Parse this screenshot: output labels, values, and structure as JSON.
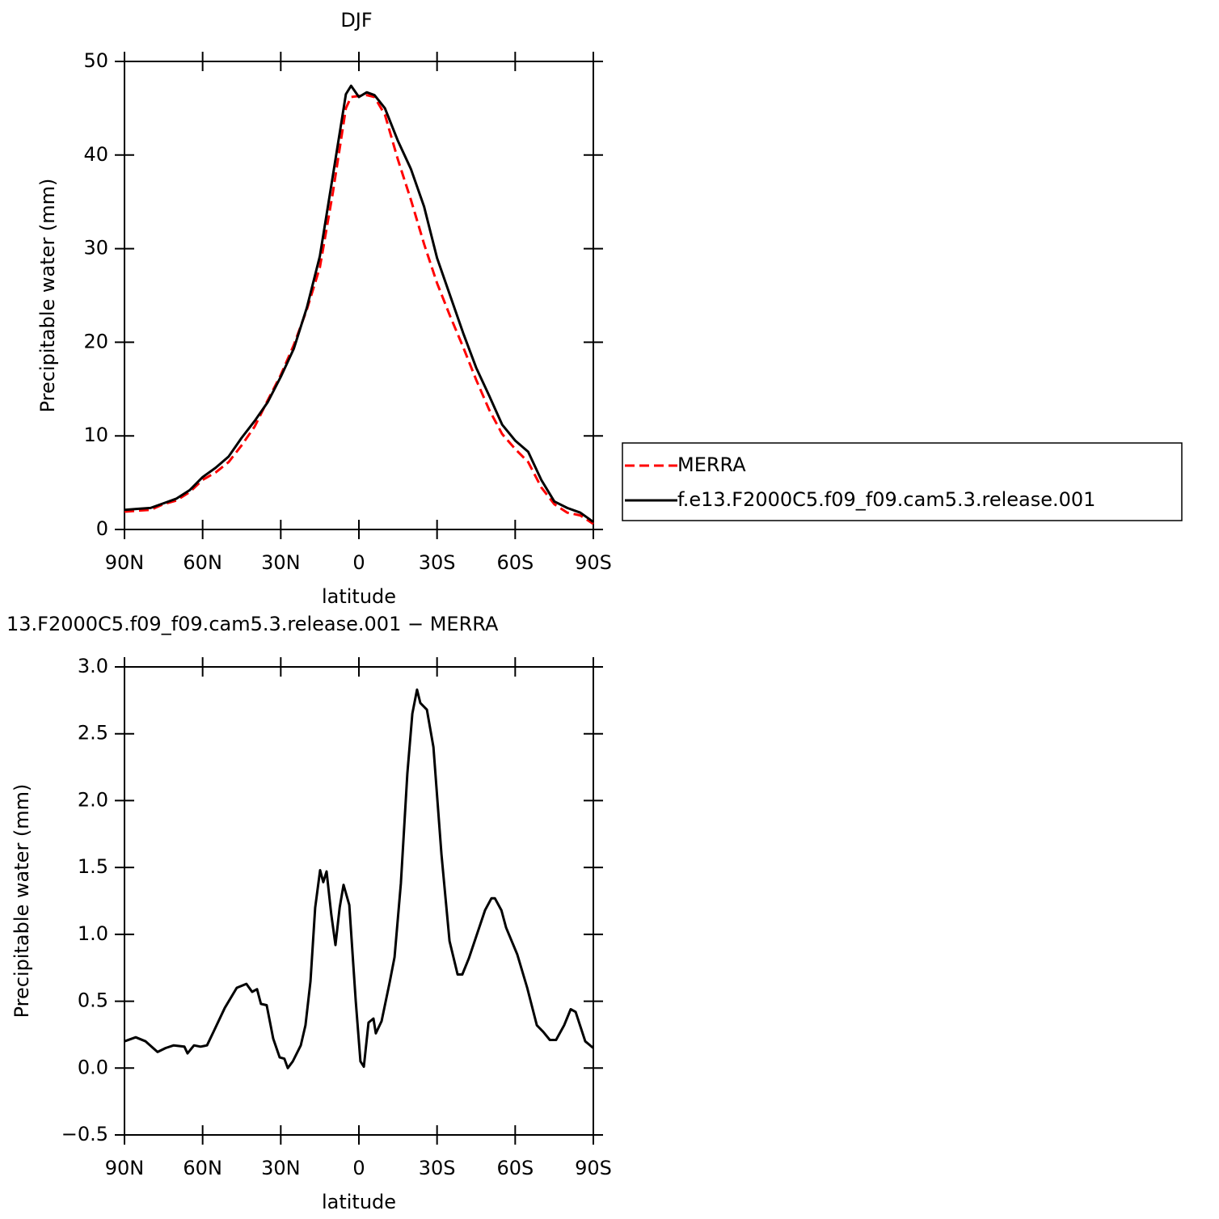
{
  "chart_data": [
    {
      "type": "line",
      "title": "DJF",
      "xlabel": "latitude",
      "ylabel": "Precipitable water (mm)",
      "x": [
        90,
        85,
        80,
        75,
        70,
        65,
        60,
        55,
        50,
        45,
        40,
        35,
        30,
        25,
        20,
        15,
        10,
        5,
        3,
        0,
        -3,
        -6,
        -10,
        -15,
        -20,
        -25,
        -30,
        -35,
        -40,
        -45,
        -50,
        -55,
        -60,
        -65,
        -70,
        -75,
        -80,
        -85,
        -90
      ],
      "series": [
        {
          "name": "MERRA",
          "color": "#ff0000",
          "line_style": "dashed",
          "values": [
            1.9,
            2.0,
            2.1,
            2.7,
            3.1,
            4.0,
            5.3,
            6.1,
            7.2,
            9.0,
            11.0,
            13.8,
            16.5,
            19.7,
            23.5,
            28.0,
            36.0,
            45.0,
            46.2,
            46.3,
            46.4,
            46.2,
            44.3,
            39.5,
            35.2,
            30.5,
            26.3,
            22.8,
            19.5,
            16.0,
            12.8,
            10.2,
            8.6,
            7.2,
            4.5,
            2.7,
            1.8,
            1.5,
            0.6
          ]
        },
        {
          "name": "f.e13.F2000C5.f09_f09.cam5.3.release.001",
          "color": "#000000",
          "line_style": "solid",
          "values": [
            2.1,
            2.2,
            2.3,
            2.8,
            3.3,
            4.2,
            5.6,
            6.6,
            7.8,
            9.8,
            11.6,
            13.6,
            16.3,
            19.3,
            23.7,
            29.2,
            37.8,
            46.5,
            47.4,
            46.2,
            46.7,
            46.4,
            45.0,
            41.5,
            38.5,
            34.5,
            29.0,
            25.0,
            21.0,
            17.3,
            14.3,
            11.2,
            9.5,
            8.3,
            5.3,
            3.0,
            2.3,
            1.8,
            0.8
          ]
        }
      ],
      "xlim": [
        90,
        -90
      ],
      "xticks": [
        {
          "value": 90,
          "label": "90N"
        },
        {
          "value": 60,
          "label": "60N"
        },
        {
          "value": 30,
          "label": "30N"
        },
        0,
        {
          "value": -30,
          "label": "30S"
        },
        {
          "value": -60,
          "label": "60S"
        },
        {
          "value": -90,
          "label": "90S"
        }
      ],
      "ylim": [
        0,
        50
      ],
      "yticks": [
        0,
        10,
        20,
        30,
        40,
        50
      ],
      "legend": "right"
    },
    {
      "type": "line",
      "title": "13.F2000C5.f09_f09.cam5.3.release.001 − MERRA",
      "xlabel": "latitude",
      "ylabel": "Precipitable water (mm)",
      "x": [
        90,
        85.7,
        81.9,
        77.3,
        74.2,
        71.1,
        67.0,
        65.8,
        63.3,
        60.8,
        58.3,
        55.6,
        51.5,
        46.9,
        43.2,
        41.0,
        39.1,
        37.6,
        35.4,
        32.9,
        30.4,
        28.6,
        27.3,
        25.4,
        22.3,
        20.5,
        18.6,
        16.8,
        14.9,
        13.7,
        12.4,
        10.6,
        9.0,
        7.4,
        5.9,
        3.7,
        1.2,
        -0.6,
        -1.9,
        -3.7,
        -5.6,
        -6.5,
        -8.7,
        -11.8,
        -13.7,
        -16.1,
        -18.6,
        -20.5,
        -22.3,
        -23.6,
        -26.1,
        -28.6,
        -31.7,
        -34.8,
        -37.9,
        -39.7,
        -42.2,
        -45.3,
        -48.4,
        -50.9,
        -52.2,
        -54.7,
        -56.5,
        -60.8,
        -64.6,
        -68.3,
        -70.8,
        -73.3,
        -75.7,
        -78.8,
        -81.3,
        -83.2,
        -86.9,
        -90
      ],
      "color": "#000000",
      "values": [
        0.2,
        0.23,
        0.2,
        0.12,
        0.15,
        0.17,
        0.16,
        0.11,
        0.17,
        0.16,
        0.17,
        0.28,
        0.45,
        0.6,
        0.63,
        0.57,
        0.59,
        0.48,
        0.47,
        0.22,
        0.08,
        0.07,
        0.0,
        0.05,
        0.17,
        0.32,
        0.65,
        1.2,
        1.48,
        1.39,
        1.47,
        1.15,
        0.92,
        1.2,
        1.37,
        1.22,
        0.5,
        0.05,
        0.01,
        0.34,
        0.37,
        0.26,
        0.35,
        0.64,
        0.83,
        1.38,
        2.2,
        2.65,
        2.83,
        2.73,
        2.68,
        2.4,
        1.6,
        0.95,
        0.7,
        0.7,
        0.82,
        1.0,
        1.18,
        1.27,
        1.27,
        1.18,
        1.05,
        0.85,
        0.6,
        0.32,
        0.27,
        0.21,
        0.21,
        0.32,
        0.44,
        0.42,
        0.2,
        0.15
      ],
      "xlim": [
        90,
        -90
      ],
      "xticks": [
        {
          "value": 90,
          "label": "90N"
        },
        {
          "value": 60,
          "label": "60N"
        },
        {
          "value": 30,
          "label": "30N"
        },
        0,
        {
          "value": -30,
          "label": "30S"
        },
        {
          "value": -60,
          "label": "60S"
        },
        {
          "value": -90,
          "label": "90S"
        }
      ],
      "ylim": [
        -0.5,
        3.0
      ],
      "yticks": [
        {
          "value": -0.5,
          "label": "−0.5"
        },
        {
          "value": 0,
          "label": "0.0"
        },
        {
          "value": 0.5,
          "label": "0.5"
        },
        {
          "value": 1,
          "label": "1.0"
        },
        {
          "value": 1.5,
          "label": "1.5"
        },
        {
          "value": 2,
          "label": "2.0"
        },
        {
          "value": 2.5,
          "label": "2.5"
        },
        {
          "value": 3,
          "label": "3.0"
        }
      ]
    }
  ]
}
